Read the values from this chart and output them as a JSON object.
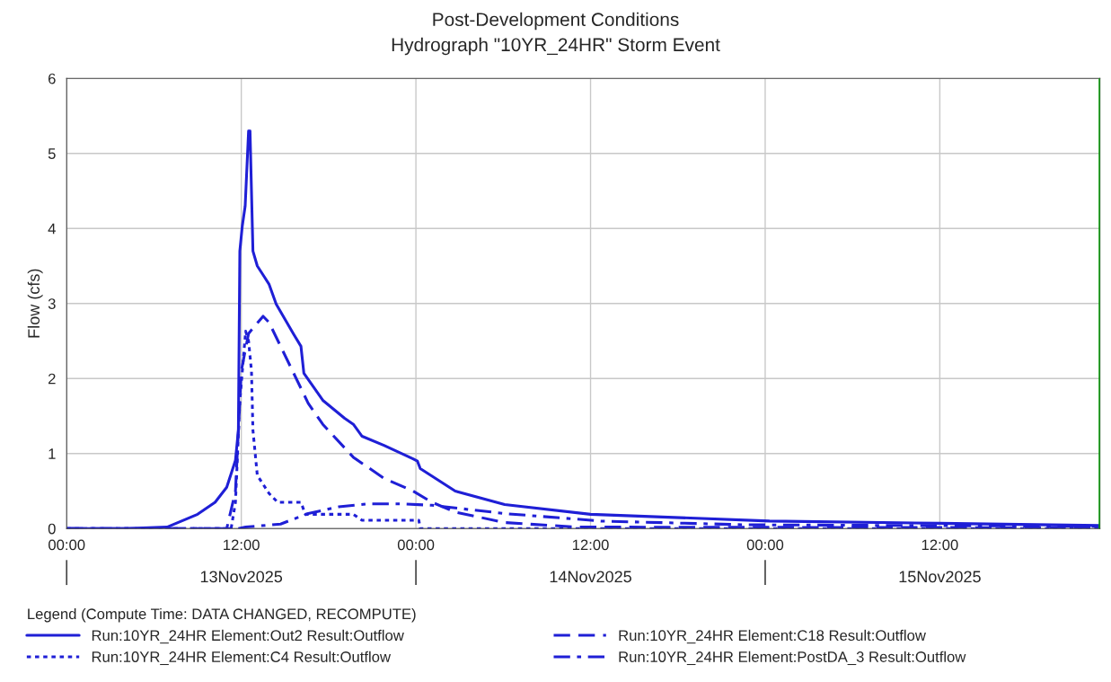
{
  "chart_data": {
    "type": "line",
    "title": "Post-Development Conditions",
    "subtitle": "Hydrograph \"10YR_24HR\" Storm Event",
    "ylabel": "Flow (cfs)",
    "legend_title": "Legend (Compute Time: DATA CHANGED, RECOMPUTE)",
    "xlim": [
      "2025-11-13T00:00",
      "2025-11-15T23:00"
    ],
    "ylim": [
      0,
      6
    ],
    "xticks": [
      {
        "value": "2025-11-13T00:00",
        "label": "00:00"
      },
      {
        "value": "2025-11-13T12:00",
        "label": "12:00"
      },
      {
        "value": "2025-11-14T00:00",
        "label": "00:00"
      },
      {
        "value": "2025-11-14T12:00",
        "label": "12:00"
      },
      {
        "value": "2025-11-15T00:00",
        "label": "00:00"
      },
      {
        "value": "2025-11-15T12:00",
        "label": "12:00"
      }
    ],
    "yticks": [
      0,
      1,
      2,
      3,
      4,
      5,
      6
    ],
    "annotations": [
      "13Nov2025",
      "14Nov2025",
      "15Nov2025"
    ],
    "grid": true,
    "legend": "bottom",
    "marker": "none",
    "ref_lines": [
      {
        "axis": "x",
        "value": "2025-11-15T23:00",
        "label": null,
        "color": "#00a000"
      }
    ],
    "series": [
      {
        "name": "Run:10YR_24HR Element:Out2 Result:Outflow",
        "color": "#1f1fd6",
        "line_style": "solid",
        "x": [
          "2025-11-13T00:00",
          "2025-11-13T04:00",
          "2025-11-13T06:54",
          "2025-11-13T09:00",
          "2025-11-13T10:12",
          "2025-11-13T11:00",
          "2025-11-13T11:36",
          "2025-11-13T11:48",
          "2025-11-13T11:54",
          "2025-11-13T12:04",
          "2025-11-13T12:16",
          "2025-11-13T12:30",
          "2025-11-13T12:36",
          "2025-11-13T12:48",
          "2025-11-13T13:06",
          "2025-11-13T13:30",
          "2025-11-13T13:54",
          "2025-11-13T14:24",
          "2025-11-13T15:36",
          "2025-11-13T16:06",
          "2025-11-13T16:18",
          "2025-11-13T17:36",
          "2025-11-13T19:06",
          "2025-11-13T19:42",
          "2025-11-13T20:18",
          "2025-11-13T21:48",
          "2025-11-13T23:48",
          "2025-11-14T00:06",
          "2025-11-14T00:18",
          "2025-11-14T02:42",
          "2025-11-14T06:06",
          "2025-11-14T12:00",
          "2025-11-15T00:18",
          "2025-11-15T12:00",
          "2025-11-15T23:00"
        ],
        "values": [
          0,
          0,
          0.02,
          0.19,
          0.35,
          0.55,
          0.91,
          1.31,
          3.7,
          4.03,
          4.3,
          5.3,
          5.3,
          3.7,
          3.5,
          3.38,
          3.26,
          2.99,
          2.59,
          2.43,
          2.07,
          1.71,
          1.47,
          1.39,
          1.23,
          1.11,
          0.93,
          0.9,
          0.8,
          0.5,
          0.32,
          0.19,
          0.1,
          0.07,
          0.04
        ]
      },
      {
        "name": "Run:10YR_24HR Element:C4 Result:Outflow",
        "color": "#1f1fd6",
        "line_style": "dotted",
        "x": [
          "2025-11-13T00:00",
          "2025-11-13T11:18",
          "2025-11-13T11:36",
          "2025-11-13T11:54",
          "2025-11-13T12:18",
          "2025-11-13T12:30",
          "2025-11-13T12:42",
          "2025-11-13T12:48",
          "2025-11-13T13:06",
          "2025-11-13T13:54",
          "2025-11-13T14:30",
          "2025-11-13T16:06",
          "2025-11-13T16:24",
          "2025-11-13T19:42",
          "2025-11-13T20:18",
          "2025-11-14T00:12",
          "2025-11-14T00:18",
          "2025-11-15T23:00"
        ],
        "values": [
          0,
          0,
          0.35,
          1.7,
          2.63,
          2.5,
          2.1,
          1.31,
          0.71,
          0.47,
          0.35,
          0.35,
          0.19,
          0.19,
          0.11,
          0.11,
          0,
          0
        ]
      },
      {
        "name": "Run:10YR_24HR Element:C18 Result:Outflow",
        "color": "#1f1fd6",
        "line_style": "dashed",
        "x": [
          "2025-11-13T00:00",
          "2025-11-13T11:00",
          "2025-11-13T11:36",
          "2025-11-13T12:00",
          "2025-11-13T12:30",
          "2025-11-13T13:30",
          "2025-11-13T13:54",
          "2025-11-13T14:42",
          "2025-11-13T15:36",
          "2025-11-13T16:36",
          "2025-11-13T17:36",
          "2025-11-13T19:42",
          "2025-11-13T21:48",
          "2025-11-13T23:48",
          "2025-11-14T01:06",
          "2025-11-14T02:42",
          "2025-11-14T06:06",
          "2025-11-14T11:00",
          "2025-11-15T23:00"
        ],
        "values": [
          0,
          0,
          0.5,
          2.1,
          2.6,
          2.83,
          2.75,
          2.43,
          2.07,
          1.67,
          1.39,
          0.95,
          0.67,
          0.5,
          0.35,
          0.22,
          0.08,
          0.02,
          0.01
        ]
      },
      {
        "name": "Run:10YR_24HR Element:PostDA_3 Result:Outflow",
        "color": "#1f1fd6",
        "line_style": "dashdot",
        "x": [
          "2025-11-13T00:00",
          "2025-11-13T11:48",
          "2025-11-13T12:18",
          "2025-11-13T14:42",
          "2025-11-13T16:36",
          "2025-11-13T18:42",
          "2025-11-13T20:48",
          "2025-11-13T22:54",
          "2025-11-14T01:06",
          "2025-11-14T06:06",
          "2025-11-14T12:42",
          "2025-11-14T22:42",
          "2025-11-15T23:00"
        ],
        "values": [
          0,
          0,
          0.02,
          0.06,
          0.2,
          0.29,
          0.33,
          0.33,
          0.31,
          0.2,
          0.1,
          0.05,
          0.03
        ]
      }
    ]
  }
}
